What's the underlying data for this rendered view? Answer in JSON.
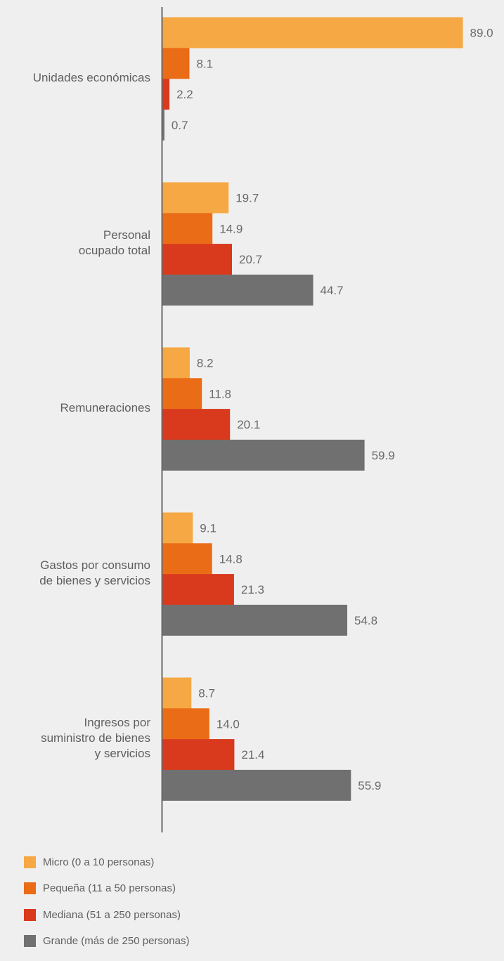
{
  "chart_data": {
    "type": "bar",
    "orientation": "horizontal",
    "categories": [
      [
        "Unidades económicas"
      ],
      [
        "Personal",
        "ocupado total"
      ],
      [
        "Remuneraciones"
      ],
      [
        "Gastos por consumo",
        "de bienes y servicios"
      ],
      [
        "Ingresos por",
        "suministro de bienes",
        "y servicios"
      ]
    ],
    "series": [
      {
        "name": "Micro (0 a 10 personas)",
        "color": "#f5a843",
        "values": [
          89.0,
          19.7,
          8.2,
          9.1,
          8.7
        ]
      },
      {
        "name": "Pequeña (11 a 50 personas)",
        "color": "#eb6c16",
        "values": [
          8.1,
          14.9,
          11.8,
          14.8,
          14.0
        ]
      },
      {
        "name": "Mediana (51 a 250 personas)",
        "color": "#d9391c",
        "values": [
          2.2,
          20.7,
          20.1,
          21.3,
          21.4
        ]
      },
      {
        "name": "Grande (más de 250 personas)",
        "color": "#717071",
        "values": [
          0.7,
          44.7,
          59.9,
          54.8,
          55.9
        ]
      }
    ],
    "value_format": "0.0",
    "xlim": [
      0,
      89.0
    ],
    "axis_color": "#6a6a6a",
    "grid": false,
    "legend_position": "bottom-left"
  }
}
